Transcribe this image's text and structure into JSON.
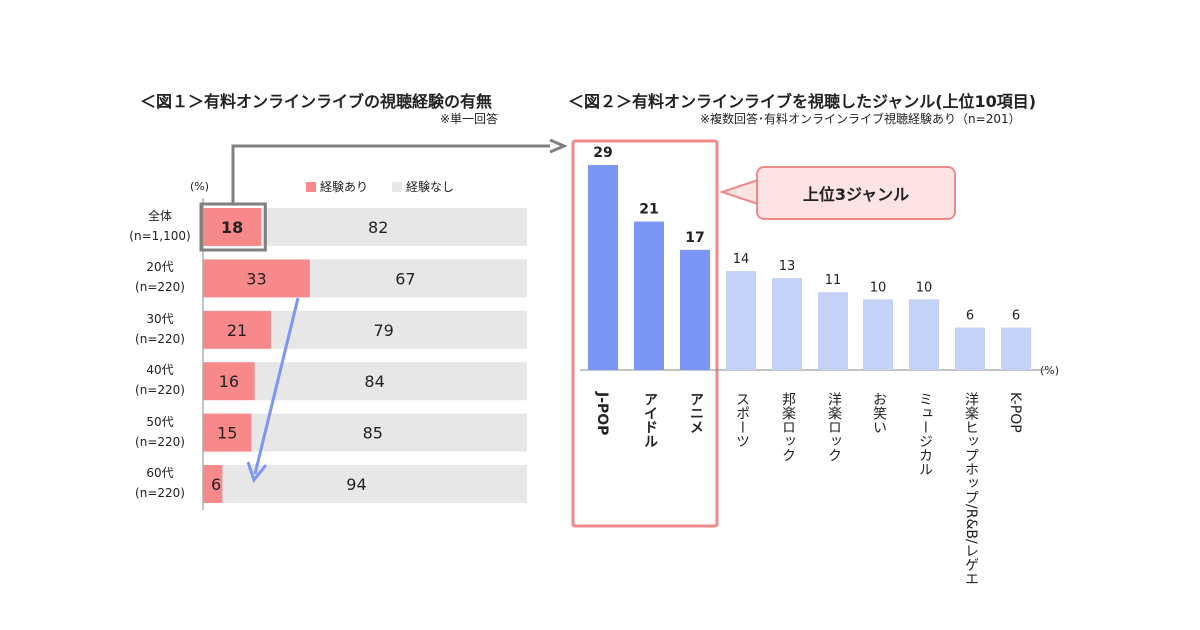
{
  "fig1": {
    "title": "＜図１＞有料オンラインライブの視聴経験の有無",
    "note": "※単一回答",
    "unit": "(%)",
    "legend": [
      "経験あり",
      "経験なし"
    ]
  },
  "fig2": {
    "title": "＜図２＞有料オンラインライブを視聴したジャンル(上位10項目)",
    "note": "※複数回答･有料オンラインライブ視聴経験あり（n=201）",
    "unit": "(%)",
    "callout": "上位3ジャンル"
  },
  "colors": {
    "yes": "#f7898b",
    "no": "#e7e7e7",
    "top": "#7b96f5",
    "rest": "#c5d2f8",
    "highlight_border": "#f08a8a",
    "arrow_gray": "#808080",
    "arrow_blue": "#7b96f5"
  },
  "chart_data": [
    {
      "type": "bar",
      "orientation": "horizontal",
      "stacked": true,
      "categories": [
        "全体\n(n=1,100)",
        "20代\n(n=220)",
        "30代\n(n=220)",
        "40代\n(n=220)",
        "50代\n(n=220)",
        "60代\n(n=220)"
      ],
      "series": [
        {
          "name": "経験あり",
          "values": [
            18,
            33,
            21,
            16,
            15,
            6
          ]
        },
        {
          "name": "経験なし",
          "values": [
            82,
            67,
            79,
            84,
            85,
            94
          ]
        }
      ],
      "xlim": [
        0,
        100
      ]
    },
    {
      "type": "bar",
      "categories": [
        "J-POP",
        "アイドル",
        "アニメ",
        "スポーツ",
        "邦楽ロック",
        "洋楽ロック",
        "お笑い",
        "ミュージカル",
        "洋楽ヒップホップ/R&B/レゲエ",
        "K-POP"
      ],
      "values": [
        29,
        21,
        17,
        14,
        13,
        11,
        10,
        10,
        6,
        6
      ],
      "highlight_top": 3,
      "ylim": [
        0,
        30
      ]
    }
  ]
}
